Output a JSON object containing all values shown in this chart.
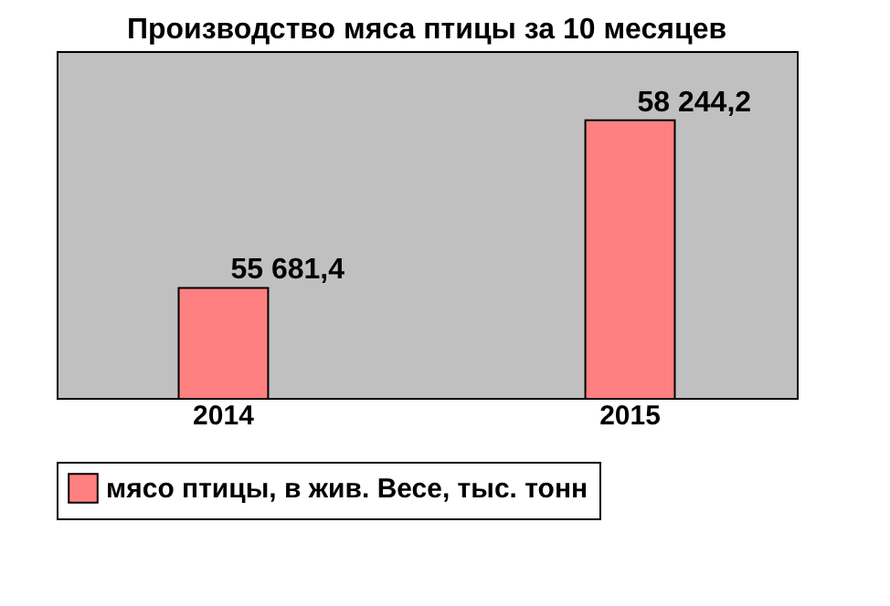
{
  "chart_data": {
    "type": "bar",
    "title": "Производство мяса птицы за 10 месяцев",
    "categories": [
      "2014",
      "2015"
    ],
    "series": [
      {
        "name": "мясо птицы, в жив. Весе, тыс. тонн",
        "color": "#ff8080",
        "values": [
          55681.4,
          58244.2
        ],
        "value_labels": [
          "55 681,4",
          "58 244,2"
        ]
      }
    ],
    "ylim": [
      54000,
      59300
    ],
    "tick_labels": "x",
    "legend": "bottom",
    "grid": false
  }
}
